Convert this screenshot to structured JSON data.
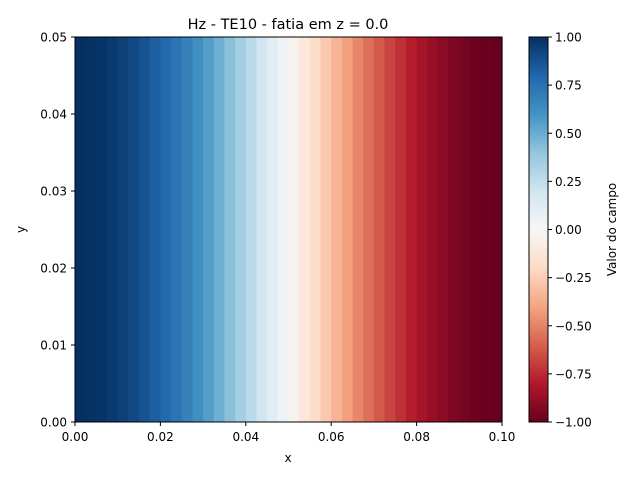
{
  "chart_data": {
    "type": "heatmap",
    "title": "Hz - TE10 - fatia em z = 0.0",
    "xlabel": "x",
    "ylabel": "y",
    "xlim": [
      0.0,
      0.1
    ],
    "ylim": [
      0.0,
      0.05
    ],
    "x_ticks": [
      "0.00",
      "0.02",
      "0.04",
      "0.06",
      "0.08",
      "0.10"
    ],
    "y_ticks": [
      "0.00",
      "0.01",
      "0.02",
      "0.03",
      "0.04",
      "0.05"
    ],
    "x_tick_values": [
      0.0,
      0.02,
      0.04,
      0.06,
      0.08,
      0.1
    ],
    "y_tick_values": [
      0.0,
      0.01,
      0.02,
      0.03,
      0.04,
      0.05
    ],
    "columns": 40,
    "field": "cos(pi * x / 0.1)",
    "colormap": "RdBu",
    "colorbar": {
      "label": "Valor do campo",
      "range": [
        -1.0,
        1.0
      ],
      "ticks": [
        "1.00",
        "0.75",
        "0.50",
        "0.25",
        "0.00",
        "−0.25",
        "−0.50",
        "−0.75",
        "−1.00"
      ],
      "tick_values": [
        1.0,
        0.75,
        0.5,
        0.25,
        0.0,
        -0.25,
        -0.5,
        -0.75,
        -1.0
      ],
      "stops": [
        "#67001f",
        "#b2182b",
        "#d6604d",
        "#f4a582",
        "#fddbc7",
        "#f7f7f7",
        "#d1e5f0",
        "#92c5de",
        "#4393c3",
        "#2166ac",
        "#053061"
      ]
    }
  }
}
